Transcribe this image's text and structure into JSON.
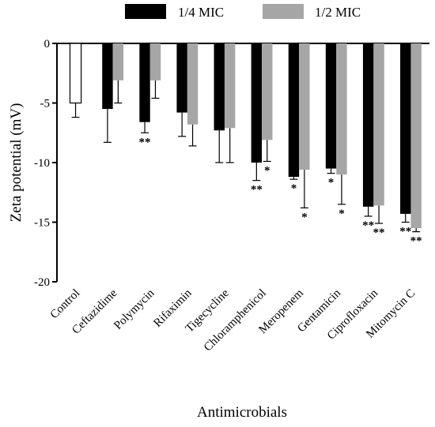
{
  "chart_data": {
    "type": "bar",
    "title": "",
    "xlabel": "Antimicrobials",
    "ylabel": "Zeta potential (mV)",
    "ylim": [
      -20,
      0
    ],
    "yticks": [
      0,
      -5,
      -10,
      -15,
      -20
    ],
    "ytick_labels": [
      "0",
      "-5",
      "-10",
      "-15",
      "-20"
    ],
    "grid": false,
    "legend_position": "top",
    "control": {
      "category": "Control",
      "value": -5.0,
      "error": 1.2,
      "fill": "#ffffff",
      "stroke": "#000000"
    },
    "categories": [
      "Ceftazidime",
      "Polymycin",
      "Rifaximin",
      "Tigecycline",
      "Chloramphenicol",
      "Meropenem",
      "Gentamicin",
      "Ciprofloxacin",
      "Mitomycin C"
    ],
    "series": [
      {
        "name": "1/4 MIC",
        "color": "#000000",
        "values": [
          -5.5,
          -6.6,
          -5.8,
          -7.3,
          -10.0,
          -11.2,
          -10.5,
          -13.7,
          -14.3
        ],
        "errors": [
          2.8,
          0.9,
          2.0,
          2.7,
          1.5,
          0.2,
          0.4,
          0.8,
          0.7
        ],
        "significance": [
          "",
          "**",
          "",
          "",
          "**",
          "*",
          "*",
          "**",
          "**"
        ]
      },
      {
        "name": "1/2 MIC",
        "color": "#a6a6a6",
        "values": [
          -3.1,
          -3.1,
          -6.8,
          -7.1,
          -8.1,
          -10.6,
          -11.0,
          -13.6,
          -15.5
        ],
        "errors": [
          1.9,
          1.5,
          1.8,
          2.9,
          1.8,
          3.2,
          2.5,
          1.5,
          0.3
        ],
        "significance": [
          "",
          "",
          "",
          "",
          "*",
          "*",
          "*",
          "**",
          "**"
        ]
      }
    ]
  }
}
